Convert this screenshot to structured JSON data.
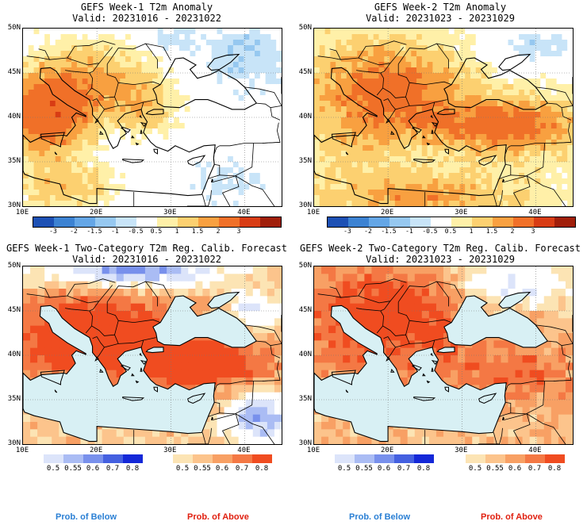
{
  "panels": [
    {
      "kind": "anomaly",
      "title": "GEFS Week-1 T2m Anomaly",
      "valid": "Valid: 20231016 - 20231022",
      "pattern": "w1a"
    },
    {
      "kind": "anomaly",
      "title": "GEFS Week-2 T2m Anomaly",
      "valid": "Valid: 20231023 - 20231029",
      "pattern": "w2a"
    },
    {
      "kind": "prob",
      "title": "GEFS Week-1 Two-Category T2m Reg. Calib. Forecast",
      "valid": "Valid: 20231016 - 20231022",
      "pattern": "w1p"
    },
    {
      "kind": "prob",
      "title": "GEFS Week-2 Two-Category T2m Reg. Calib. Forecast",
      "valid": "Valid: 20231023 - 20231029",
      "pattern": "w2p"
    }
  ],
  "lat_labels": [
    "50N",
    "45N",
    "40N",
    "35N",
    "30N"
  ],
  "lon_labels": [
    "10E",
    "20E",
    "30E",
    "40E"
  ],
  "anomaly_colorbar": {
    "labels": [
      "-3",
      "-2",
      "-1.5",
      "-1",
      "-0.5",
      "0.5",
      "1",
      "1.5",
      "2",
      "3"
    ],
    "colors": [
      "#1c50b4",
      "#3c82d2",
      "#64a6e6",
      "#96c8f0",
      "#c8e4f8",
      "#ffffff",
      "#fff0a8",
      "#fcd070",
      "#f8a040",
      "#f07028",
      "#d83c14",
      "#a01e0a"
    ]
  },
  "prob_below_bar": {
    "labels": [
      "0.5",
      "0.55",
      "0.6",
      "0.7",
      "0.8"
    ],
    "colors": [
      "#dce4fa",
      "#aabcf4",
      "#7890ec",
      "#4460e0",
      "#1428d8"
    ]
  },
  "prob_above_bar": {
    "labels": [
      "0.5",
      "0.55",
      "0.6",
      "0.7",
      "0.8"
    ],
    "colors": [
      "#fce4b4",
      "#fcc48c",
      "#f8a064",
      "#f47844",
      "#f04c20"
    ]
  },
  "legend": {
    "below": "Prob. of Below",
    "above": "Prob. of Above"
  },
  "colors": {
    "sea": "#d8f0f4",
    "below_text": "#2a7fd4",
    "above_text": "#e02010"
  }
}
